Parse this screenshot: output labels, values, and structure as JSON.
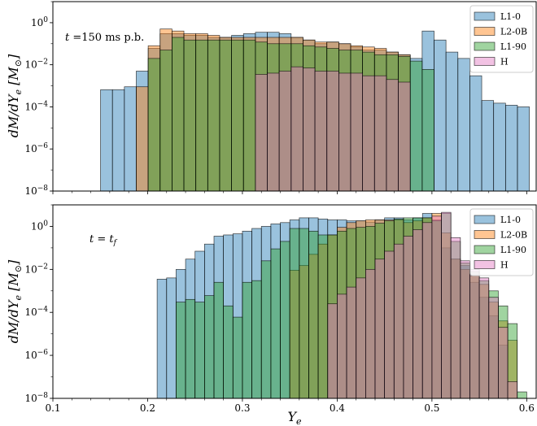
{
  "chart_data": [
    {
      "type": "bar",
      "annotation": "t =150 ms p.b.",
      "ylabel": "dM/dYe [M⊙]",
      "xlim": [
        0.1,
        0.61
      ],
      "yscale": "log",
      "ylim": [
        1e-08,
        10
      ],
      "yticks": [
        {
          "value": 1,
          "label": "10^0"
        },
        {
          "value": 0.01,
          "label": "10^-2"
        },
        {
          "value": 0.0001,
          "label": "10^-4"
        },
        {
          "value": 1e-06,
          "label": "10^-6"
        },
        {
          "value": 1e-08,
          "label": "10^-8"
        }
      ],
      "bin_start": 0.1,
      "bin_width": 0.01257,
      "legend": "top-right",
      "series": [
        {
          "name": "L1-0",
          "color": "#1f77b4",
          "values": [
            null,
            null,
            null,
            null,
            0.00065,
            0.00065,
            0.0009,
            0.005,
            0.06,
            0.3,
            0.3,
            0.25,
            0.25,
            0.2,
            0.2,
            0.25,
            0.3,
            0.35,
            0.35,
            0.3,
            0.2,
            0.15,
            0.1,
            0.12,
            0.1,
            0.07,
            0.05,
            0.05,
            0.04,
            0.03,
            0.02,
            0.4,
            0.15,
            0.04,
            0.02,
            0.003,
            0.0002,
            0.00015,
            0.00012,
            0.0001,
            null,
            6e-05,
            5e-05
          ]
        },
        {
          "name": "L2-0B",
          "color": "#ff7f0e",
          "values": [
            null,
            null,
            null,
            null,
            null,
            null,
            null,
            0.0009,
            0.08,
            0.5,
            0.4,
            0.3,
            0.3,
            0.25,
            0.2,
            0.2,
            0.2,
            0.2,
            0.2,
            0.2,
            0.2,
            0.15,
            0.12,
            0.12,
            0.1,
            0.08,
            0.07,
            0.06,
            0.04,
            0.03,
            null,
            null,
            null,
            null,
            null,
            null,
            null,
            null,
            null,
            null,
            null,
            null,
            null
          ]
        },
        {
          "name": "L1-90",
          "color": "#2ca02c",
          "values": [
            null,
            null,
            null,
            null,
            null,
            null,
            null,
            null,
            0.02,
            0.05,
            0.2,
            0.15,
            0.15,
            0.15,
            0.15,
            0.15,
            0.15,
            0.12,
            0.1,
            0.1,
            0.1,
            0.08,
            0.07,
            0.06,
            0.05,
            0.05,
            0.04,
            0.03,
            0.03,
            0.025,
            0.015,
            0.006,
            null,
            null,
            null,
            null,
            null,
            null,
            null,
            null,
            null,
            null,
            null
          ]
        },
        {
          "name": "H",
          "color": "#e377c2",
          "values": [
            null,
            null,
            null,
            null,
            null,
            null,
            null,
            null,
            null,
            null,
            null,
            null,
            null,
            null,
            null,
            null,
            null,
            0.0035,
            0.004,
            0.005,
            0.008,
            0.007,
            0.005,
            0.005,
            0.004,
            0.004,
            0.003,
            0.003,
            0.002,
            0.0015,
            null,
            null,
            null,
            null,
            null,
            null,
            null,
            null,
            null,
            null,
            null,
            null,
            null
          ]
        }
      ]
    },
    {
      "type": "bar",
      "annotation": "t = t_f",
      "ylabel": "dM/dYe [M⊙]",
      "xlabel": "Ye",
      "xlim": [
        0.1,
        0.61
      ],
      "xticks": [
        0.1,
        0.2,
        0.3,
        0.4,
        0.5,
        0.6
      ],
      "yscale": "log",
      "ylim": [
        1e-08,
        10
      ],
      "yticks": [
        {
          "value": 1,
          "label": "10^0"
        },
        {
          "value": 0.01,
          "label": "10^-2"
        },
        {
          "value": 0.0001,
          "label": "10^-4"
        },
        {
          "value": 1e-06,
          "label": "10^-6"
        },
        {
          "value": 1e-08,
          "label": "10^-8"
        }
      ],
      "bin_start": 0.1,
      "bin_width": 0.01,
      "legend": "top-right",
      "series": [
        {
          "name": "L1-0",
          "color": "#1f77b4",
          "values": [
            null,
            null,
            null,
            null,
            null,
            null,
            null,
            null,
            null,
            null,
            null,
            0.0035,
            0.004,
            0.01,
            0.03,
            0.07,
            0.15,
            0.35,
            0.4,
            0.45,
            0.6,
            0.8,
            1.0,
            1.3,
            1.5,
            2.0,
            2.5,
            2.5,
            2.2,
            2.0,
            2.0,
            1.8,
            1.8,
            1.6,
            2.0,
            2.5,
            2.5,
            2.0,
            2.5,
            4.0,
            2.0,
            0.1,
            0.03,
            0.015,
            0.0025,
            0.0005,
            7e-05,
            3e-06,
            null,
            null
          ]
        },
        {
          "name": "L2-0B",
          "color": "#ff7f0e",
          "values": [
            null,
            null,
            null,
            null,
            null,
            null,
            null,
            null,
            null,
            null,
            null,
            null,
            null,
            null,
            null,
            null,
            null,
            null,
            null,
            null,
            null,
            null,
            null,
            null,
            null,
            0.009,
            0.015,
            0.05,
            0.15,
            0.4,
            0.9,
            1.5,
            1.8,
            2.0,
            2.0,
            2.0,
            2.0,
            1.5,
            1.8,
            2.5,
            4.0,
            0.5,
            0.03,
            0.01,
            0.005,
            0.002,
            0.0003,
            4e-05,
            5e-06,
            null
          ]
        },
        {
          "name": "L1-90",
          "color": "#2ca02c",
          "values": [
            null,
            null,
            null,
            null,
            null,
            null,
            null,
            null,
            null,
            null,
            null,
            null,
            null,
            0.0003,
            0.0004,
            0.0003,
            0.0006,
            0.0025,
            0.0002,
            6e-05,
            0.0025,
            0.003,
            0.025,
            0.09,
            0.2,
            0.8,
            0.8,
            0.6,
            0.4,
            0.4,
            0.6,
            0.8,
            0.9,
            1.0,
            1.4,
            1.8,
            2.2,
            2.5,
            2.5,
            2.5,
            1.8,
            4.0,
            0.2,
            0.02,
            0.008,
            0.003,
            0.001,
            0.0002,
            3e-05,
            2e-08
          ]
        },
        {
          "name": "H",
          "color": "#e377c2",
          "values": [
            null,
            null,
            null,
            null,
            null,
            null,
            null,
            null,
            null,
            null,
            null,
            null,
            null,
            null,
            null,
            null,
            null,
            null,
            null,
            null,
            null,
            null,
            null,
            null,
            null,
            null,
            null,
            null,
            null,
            0.00025,
            0.0007,
            0.0015,
            0.004,
            0.01,
            0.03,
            0.07,
            0.15,
            0.35,
            0.7,
            1.5,
            3.0,
            4.5,
            0.3,
            0.025,
            0.01,
            0.004,
            0.0005,
            2e-05,
            6e-08,
            null
          ]
        }
      ]
    }
  ]
}
